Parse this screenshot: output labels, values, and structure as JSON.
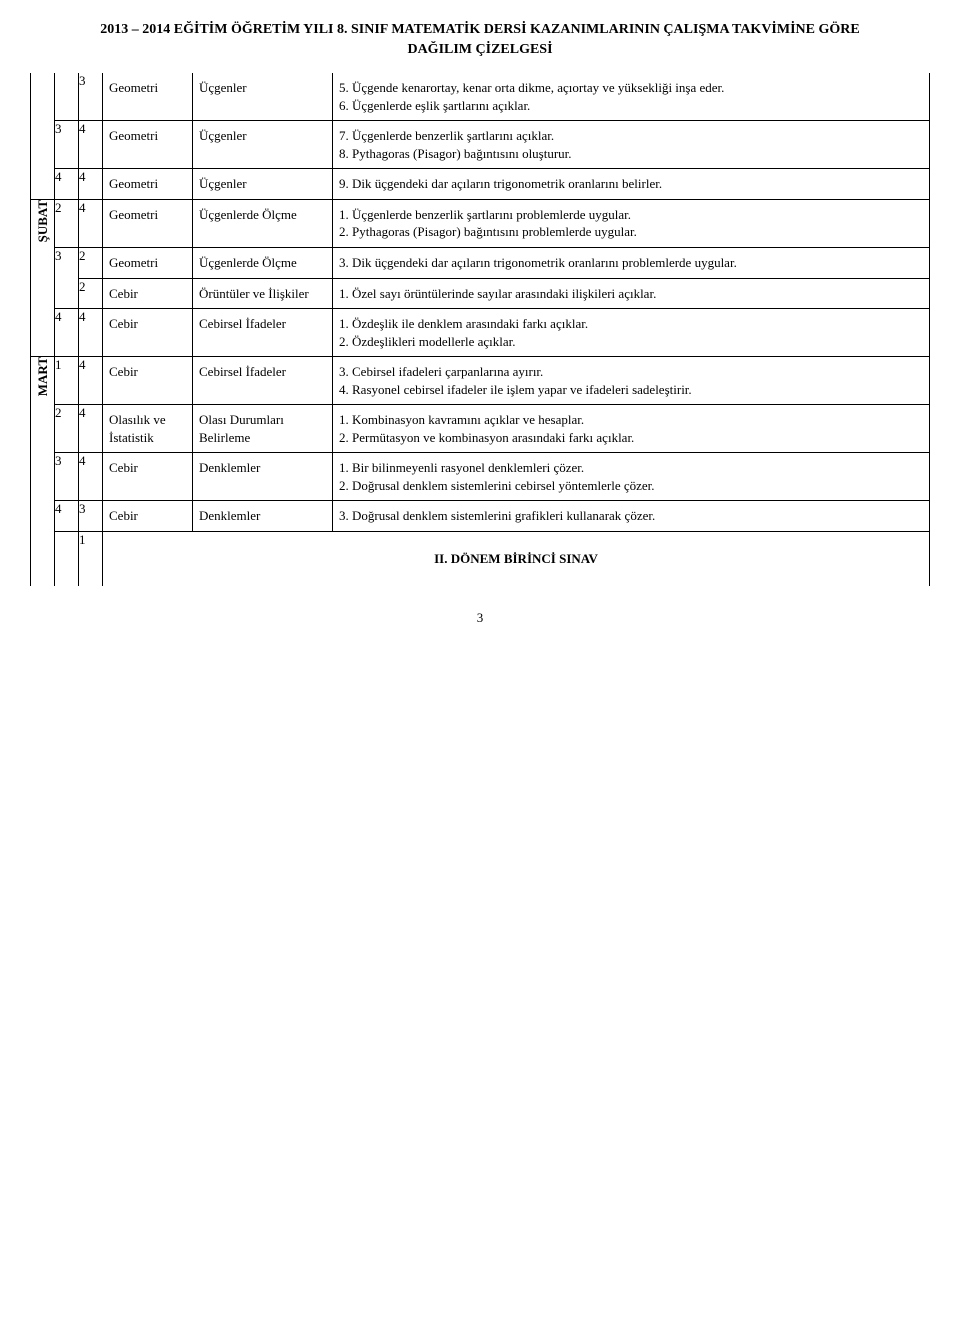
{
  "title_line1": "2013 – 2014 EĞİTİM ÖĞRETİM YILI 8. SINIF MATEMATİK DERSİ KAZANIMLARININ ÇALIŞMA TAKVİMİNE GÖRE",
  "title_line2": "DAĞILIM ÇİZELGESİ",
  "months": {
    "subat": "ŞUBAT",
    "mart": "MART"
  },
  "rows": [
    {
      "month": null,
      "week": "",
      "hours": "3",
      "area": "Geometri",
      "sub": "Üçgenler",
      "obj": [
        "5. Üçgende kenarortay, kenar orta dikme, açıortay ve yüksekliği inşa eder.",
        "6. Üçgenlerde eşlik şartlarını açıklar."
      ]
    },
    {
      "month": null,
      "week": "3",
      "hours": "4",
      "area": "Geometri",
      "sub": "Üçgenler",
      "obj": [
        "7. Üçgenlerde benzerlik şartlarını açıklar.",
        "8. Pythagoras (Pisagor) bağıntısını oluşturur."
      ]
    },
    {
      "month": null,
      "week": "4",
      "hours": "4",
      "area": "Geometri",
      "sub": "Üçgenler",
      "obj": [
        "9. Dik üçgendeki dar açıların trigonometrik oranlarını belirler."
      ]
    },
    {
      "month": "subat",
      "week": "2",
      "hours": "4",
      "area": "Geometri",
      "sub": "Üçgenlerde Ölçme",
      "obj": [
        "1. Üçgenlerde benzerlik şartlarını problemlerde uygular.",
        "2. Pythagoras (Pisagor) bağıntısını problemlerde uygular."
      ]
    },
    {
      "month": "subat",
      "week": "3",
      "hours": "2",
      "area": "Geometri",
      "sub": "Üçgenlerde Ölçme",
      "obj": [
        "3. Dik üçgendeki dar açıların trigonometrik oranlarını problemlerde uygular."
      ]
    },
    {
      "month": "subat",
      "week": "",
      "hours": "2",
      "area": "Cebir",
      "sub": "Örüntüler ve İlişkiler",
      "obj": [
        "1. Özel sayı örüntülerinde sayılar arasındaki ilişkileri açıklar."
      ]
    },
    {
      "month": "subat",
      "week": "4",
      "hours": "4",
      "area": "Cebir",
      "sub": "Cebirsel İfadeler",
      "obj": [
        "1. Özdeşlik ile denklem arasındaki farkı açıklar.",
        "2. Özdeşlikleri modellerle açıklar."
      ]
    },
    {
      "month": "mart",
      "week": "1",
      "hours": "4",
      "area": "Cebir",
      "sub": "Cebirsel İfadeler",
      "obj": [
        "3. Cebirsel ifadeleri çarpanlarına ayırır.",
        "4. Rasyonel cebirsel ifadeler ile işlem yapar ve ifadeleri sadeleştirir."
      ]
    },
    {
      "month": "mart",
      "week": "2",
      "hours": "4",
      "area": "Olasılık ve İstatistik",
      "sub": "Olası Durumları Belirleme",
      "obj": [
        "1. Kombinasyon kavramını açıklar ve hesaplar.",
        "2. Permütasyon ve kombinasyon arasındaki farkı açıklar."
      ]
    },
    {
      "month": "mart",
      "week": "3",
      "hours": "4",
      "area": "Cebir",
      "sub": "Denklemler",
      "obj": [
        "1. Bir bilinmeyenli rasyonel denklemleri çözer.",
        "2. Doğrusal denklem sistemlerini cebirsel yöntemlerle çözer."
      ]
    },
    {
      "month": "mart",
      "week": "4",
      "hours": "3",
      "area": "Cebir",
      "sub": "Denklemler",
      "obj": [
        "3. Doğrusal denklem sistemlerini grafikleri kullanarak çözer."
      ]
    },
    {
      "month": "mart",
      "week": "",
      "hours": "1",
      "area": "",
      "sub": "",
      "obj_bold_center": "II.  DÖNEM BİRİNCİ SINAV"
    }
  ],
  "page_number": "3"
}
